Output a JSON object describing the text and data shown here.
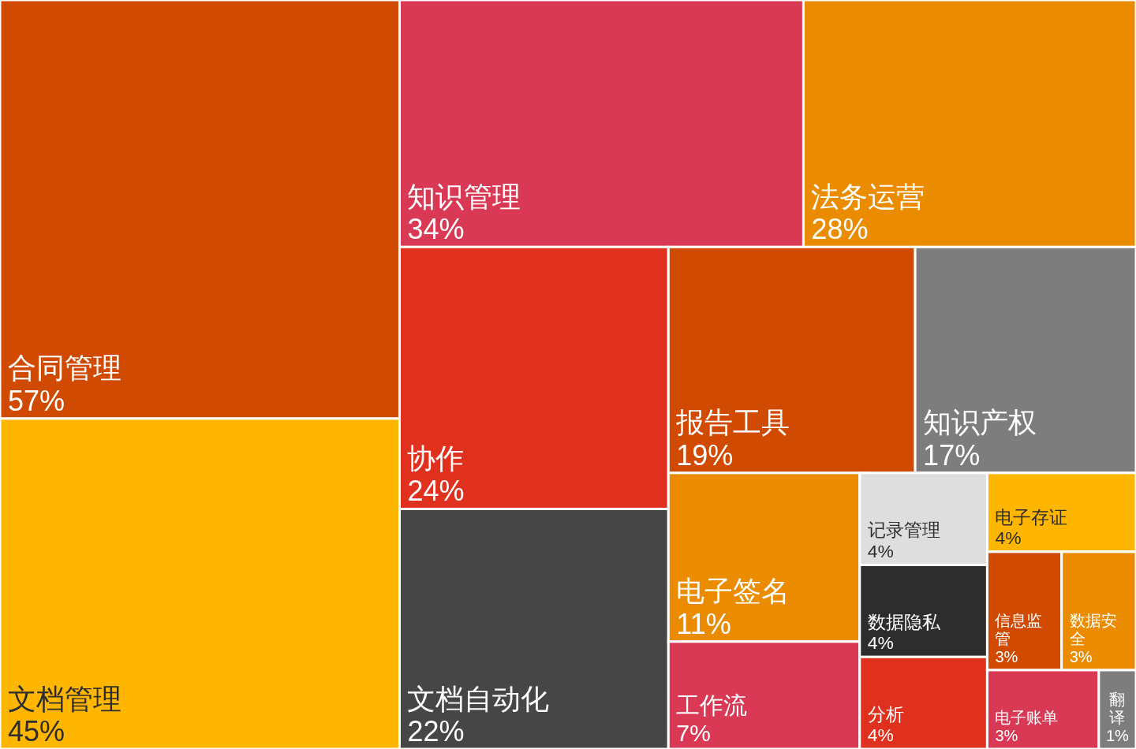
{
  "chart_data": {
    "type": "other",
    "categories": [
      "合同管理",
      "文档管理",
      "知识管理",
      "法务运营",
      "协作",
      "文档自动化",
      "报告工具",
      "知识产权",
      "电子签名",
      "工作流",
      "记录管理",
      "数据隐私",
      "分析",
      "电子存证",
      "信息监管",
      "数据安全",
      "电子账单",
      "翻译"
    ],
    "values": [
      57,
      45,
      34,
      28,
      24,
      22,
      19,
      17,
      11,
      7,
      4,
      4,
      4,
      4,
      3,
      3,
      3,
      1
    ],
    "value_labels": [
      "57%",
      "45%",
      "34%",
      "28%",
      "24%",
      "22%",
      "19%",
      "17%",
      "11%",
      "7%",
      "4%",
      "4%",
      "4%",
      "4%",
      "3%",
      "3%",
      "3%",
      "1%"
    ],
    "colors": [
      "#d04a02",
      "#ffb600",
      "#d93954",
      "#eb8c00",
      "#e0301e",
      "#464646",
      "#d04a02",
      "#7d7d7d",
      "#eb8c00",
      "#d93954",
      "#dedede",
      "#2d2d2d",
      "#e0301e",
      "#ffb600",
      "#d04a02",
      "#eb8c00",
      "#d93954",
      "#7d7d7d"
    ]
  }
}
